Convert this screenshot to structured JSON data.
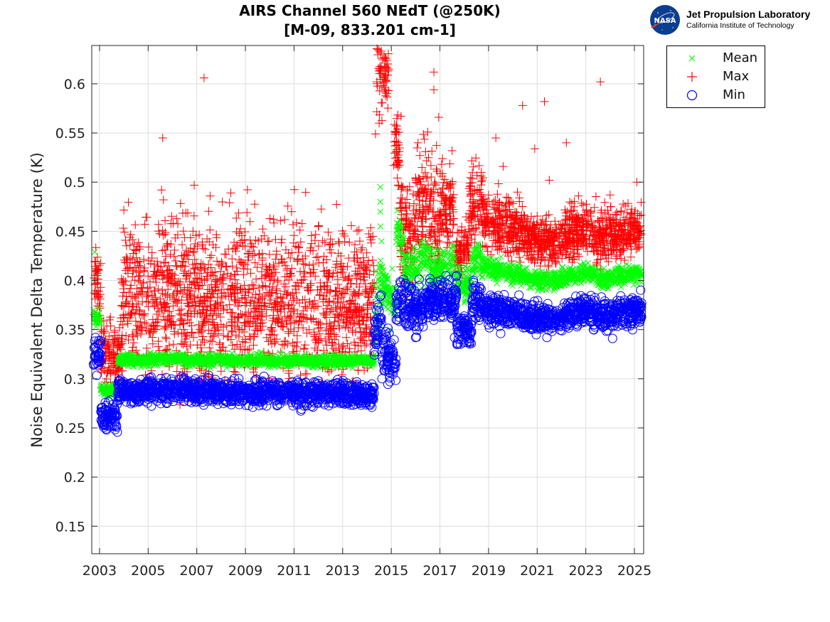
{
  "chart_data": {
    "type": "scatter",
    "title": "AIRS Channel 560 NEdT (@250K)",
    "subtitle": "[M-09, 833.201 cm-1]",
    "xlabel": "",
    "ylabel": "Noise Equivalent Delta Temperature (K)",
    "xlim": [
      2002.68,
      2025.38
    ],
    "ylim": [
      0.122,
      0.639
    ],
    "grid": true,
    "legend_position": "outside-top-right",
    "x_ticks": [
      2003,
      2005,
      2007,
      2009,
      2011,
      2013,
      2015,
      2017,
      2019,
      2021,
      2023,
      2025
    ],
    "x_tick_labels": [
      "2003",
      "2005",
      "2007",
      "2009",
      "2011",
      "2013",
      "2015",
      "2017",
      "2019",
      "2021",
      "2023",
      "2025"
    ],
    "y_ticks": [
      0.15,
      0.2,
      0.25,
      0.3,
      0.35,
      0.4,
      0.45,
      0.5,
      0.55,
      0.6
    ],
    "y_tick_labels": [
      "0.15",
      "0.2",
      "0.25",
      "0.3",
      "0.35",
      "0.4",
      "0.45",
      "0.5",
      "0.55",
      "0.6"
    ],
    "series": [
      {
        "name": "Mean",
        "marker": "x",
        "color": "#00ff00",
        "segments": [
          {
            "x0": 2002.75,
            "x1": 2003.05,
            "y0": 0.36,
            "y1": 0.36,
            "spread": 0.004
          },
          {
            "x0": 2003.05,
            "x1": 2003.75,
            "y0": 0.288,
            "y1": 0.289,
            "spread": 0.003
          },
          {
            "x0": 2003.75,
            "x1": 2006.5,
            "y0": 0.318,
            "y1": 0.321,
            "spread": 0.003
          },
          {
            "x0": 2006.5,
            "x1": 2014.3,
            "y0": 0.319,
            "y1": 0.318,
            "spread": 0.003
          },
          {
            "x0": 2014.3,
            "x1": 2014.6,
            "y0": 0.36,
            "y1": 0.4,
            "spread": 0.02
          },
          {
            "x0": 2014.6,
            "x1": 2015.2,
            "y0": 0.395,
            "y1": 0.38,
            "spread": 0.012
          },
          {
            "x0": 2015.2,
            "x1": 2015.5,
            "y0": 0.45,
            "y1": 0.44,
            "spread": 0.01
          },
          {
            "x0": 2015.5,
            "x1": 2016.2,
            "y0": 0.41,
            "y1": 0.415,
            "spread": 0.01
          },
          {
            "x0": 2016.2,
            "x1": 2016.6,
            "y0": 0.42,
            "y1": 0.42,
            "spread": 0.01
          },
          {
            "x0": 2016.6,
            "x1": 2017.6,
            "y0": 0.41,
            "y1": 0.42,
            "spread": 0.01
          },
          {
            "x0": 2017.6,
            "x1": 2018.3,
            "y0": 0.395,
            "y1": 0.4,
            "spread": 0.008
          },
          {
            "x0": 2018.3,
            "x1": 2018.7,
            "y0": 0.415,
            "y1": 0.425,
            "spread": 0.008
          },
          {
            "x0": 2018.7,
            "x1": 2020.5,
            "y0": 0.415,
            "y1": 0.405,
            "spread": 0.005
          },
          {
            "x0": 2020.5,
            "x1": 2022.0,
            "y0": 0.402,
            "y1": 0.398,
            "spread": 0.005
          },
          {
            "x0": 2022.0,
            "x1": 2023.3,
            "y0": 0.403,
            "y1": 0.41,
            "spread": 0.005
          },
          {
            "x0": 2023.3,
            "x1": 2024.0,
            "y0": 0.405,
            "y1": 0.4,
            "spread": 0.005
          },
          {
            "x0": 2024.0,
            "x1": 2025.3,
            "y0": 0.405,
            "y1": 0.407,
            "spread": 0.005
          }
        ],
        "outliers": [
          [
            2002.8,
            0.429
          ],
          [
            2014.55,
            0.495
          ],
          [
            2014.55,
            0.48
          ],
          [
            2014.55,
            0.47
          ],
          [
            2014.55,
            0.455
          ],
          [
            2014.6,
            0.44
          ],
          [
            2014.95,
            0.35
          ],
          [
            2017.7,
            0.41
          ],
          [
            2017.5,
            0.407
          ],
          [
            2021.2,
            0.409
          ]
        ]
      },
      {
        "name": "Max",
        "marker": "+",
        "color": "#ff0000",
        "segments": [
          {
            "x0": 2002.75,
            "x1": 2003.05,
            "y0": 0.392,
            "y1": 0.392,
            "spread": 0.018
          },
          {
            "x0": 2003.05,
            "x1": 2003.9,
            "y0": 0.325,
            "y1": 0.325,
            "spread": 0.016
          },
          {
            "x0": 2003.9,
            "x1": 2014.3,
            "y0": 0.38,
            "y1": 0.378,
            "spread": 0.04
          },
          {
            "x0": 2014.4,
            "x1": 2014.9,
            "y0": 0.62,
            "y1": 0.615,
            "spread": 0.025
          },
          {
            "x0": 2015.1,
            "x1": 2015.35,
            "y0": 0.535,
            "y1": 0.53,
            "spread": 0.018
          },
          {
            "x0": 2015.35,
            "x1": 2016.0,
            "y0": 0.455,
            "y1": 0.445,
            "spread": 0.025
          },
          {
            "x0": 2016.0,
            "x1": 2016.5,
            "y0": 0.48,
            "y1": 0.48,
            "spread": 0.025
          },
          {
            "x0": 2016.5,
            "x1": 2017.0,
            "y0": 0.48,
            "y1": 0.44,
            "spread": 0.03
          },
          {
            "x0": 2017.0,
            "x1": 2017.6,
            "y0": 0.48,
            "y1": 0.475,
            "spread": 0.02
          },
          {
            "x0": 2017.6,
            "x1": 2018.2,
            "y0": 0.425,
            "y1": 0.435,
            "spread": 0.014
          },
          {
            "x0": 2018.2,
            "x1": 2018.8,
            "y0": 0.47,
            "y1": 0.48,
            "spread": 0.02
          },
          {
            "x0": 2018.8,
            "x1": 2020.5,
            "y0": 0.46,
            "y1": 0.45,
            "spread": 0.014
          },
          {
            "x0": 2020.5,
            "x1": 2022.0,
            "y0": 0.443,
            "y1": 0.438,
            "spread": 0.012
          },
          {
            "x0": 2022.0,
            "x1": 2023.3,
            "y0": 0.445,
            "y1": 0.455,
            "spread": 0.013
          },
          {
            "x0": 2023.3,
            "x1": 2025.3,
            "y0": 0.447,
            "y1": 0.45,
            "spread": 0.013
          }
        ],
        "outliers": [
          [
            2005.6,
            0.545
          ],
          [
            2005.55,
            0.492
          ],
          [
            2007.3,
            0.606
          ],
          [
            2008.4,
            0.489
          ],
          [
            2010.9,
            0.47
          ],
          [
            2012.0,
            0.455
          ],
          [
            2014.35,
            0.549
          ],
          [
            2014.5,
            0.56
          ],
          [
            2015.1,
            0.517
          ],
          [
            2015.4,
            0.567
          ],
          [
            2014.9,
            0.615
          ],
          [
            2016.5,
            0.551
          ],
          [
            2016.75,
            0.612
          ],
          [
            2016.75,
            0.594
          ],
          [
            2016.95,
            0.566
          ],
          [
            2017.5,
            0.532
          ],
          [
            2016.1,
            0.54
          ],
          [
            2018.7,
            0.51
          ],
          [
            2019.3,
            0.545
          ],
          [
            2020.4,
            0.578
          ],
          [
            2021.3,
            0.582
          ],
          [
            2020.9,
            0.534
          ],
          [
            2023.6,
            0.602
          ],
          [
            2022.2,
            0.54
          ],
          [
            2024.0,
            0.487
          ],
          [
            2025.1,
            0.5
          ],
          [
            2019.6,
            0.516
          ],
          [
            2021.5,
            0.502
          ],
          [
            2022.7,
            0.486
          ]
        ]
      },
      {
        "name": "Min",
        "marker": "o",
        "color": "#0000ff",
        "segments": [
          {
            "x0": 2002.75,
            "x1": 2003.05,
            "y0": 0.325,
            "y1": 0.325,
            "spread": 0.008
          },
          {
            "x0": 2003.05,
            "x1": 2003.75,
            "y0": 0.262,
            "y1": 0.262,
            "spread": 0.007
          },
          {
            "x0": 2003.75,
            "x1": 2006.5,
            "y0": 0.287,
            "y1": 0.289,
            "spread": 0.006
          },
          {
            "x0": 2006.5,
            "x1": 2014.3,
            "y0": 0.288,
            "y1": 0.284,
            "spread": 0.006
          },
          {
            "x0": 2014.3,
            "x1": 2014.6,
            "y0": 0.34,
            "y1": 0.37,
            "spread": 0.015
          },
          {
            "x0": 2014.6,
            "x1": 2015.2,
            "y0": 0.325,
            "y1": 0.32,
            "spread": 0.012
          },
          {
            "x0": 2015.2,
            "x1": 2016.3,
            "y0": 0.375,
            "y1": 0.37,
            "spread": 0.012
          },
          {
            "x0": 2016.3,
            "x1": 2016.7,
            "y0": 0.38,
            "y1": 0.38,
            "spread": 0.01
          },
          {
            "x0": 2016.7,
            "x1": 2017.7,
            "y0": 0.38,
            "y1": 0.382,
            "spread": 0.01
          },
          {
            "x0": 2017.7,
            "x1": 2018.3,
            "y0": 0.35,
            "y1": 0.35,
            "spread": 0.008
          },
          {
            "x0": 2018.3,
            "x1": 2018.7,
            "y0": 0.38,
            "y1": 0.375,
            "spread": 0.01
          },
          {
            "x0": 2018.7,
            "x1": 2020.5,
            "y0": 0.372,
            "y1": 0.365,
            "spread": 0.007
          },
          {
            "x0": 2020.5,
            "x1": 2022.0,
            "y0": 0.363,
            "y1": 0.36,
            "spread": 0.007
          },
          {
            "x0": 2022.0,
            "x1": 2023.3,
            "y0": 0.365,
            "y1": 0.37,
            "spread": 0.007
          },
          {
            "x0": 2023.3,
            "x1": 2024.2,
            "y0": 0.365,
            "y1": 0.362,
            "spread": 0.007
          },
          {
            "x0": 2024.2,
            "x1": 2025.3,
            "y0": 0.368,
            "y1": 0.37,
            "spread": 0.007
          }
        ],
        "outliers": [
          [
            2003.7,
            0.251
          ],
          [
            2009.3,
            0.271
          ],
          [
            2014.2,
            0.271
          ],
          [
            2014.95,
            0.297
          ],
          [
            2016.0,
            0.342
          ],
          [
            2017.6,
            0.342
          ],
          [
            2021.4,
            0.342
          ],
          [
            2024.1,
            0.341
          ],
          [
            2019.5,
            0.346
          ]
        ]
      }
    ]
  },
  "header": {
    "title_line1": "AIRS Channel 560 NEdT (@250K)",
    "title_line2": "[M-09, 833.201 cm-1]"
  },
  "logo": {
    "nasa_text": "NASA",
    "org_name": "Jet Propulsion Laboratory",
    "org_sub": "California Institute of Technology"
  },
  "legend": {
    "items": [
      {
        "label": "Mean",
        "color": "#00ff00"
      },
      {
        "label": "Max",
        "color": "#ff0000"
      },
      {
        "label": "Min",
        "color": "#0000ff"
      }
    ]
  }
}
